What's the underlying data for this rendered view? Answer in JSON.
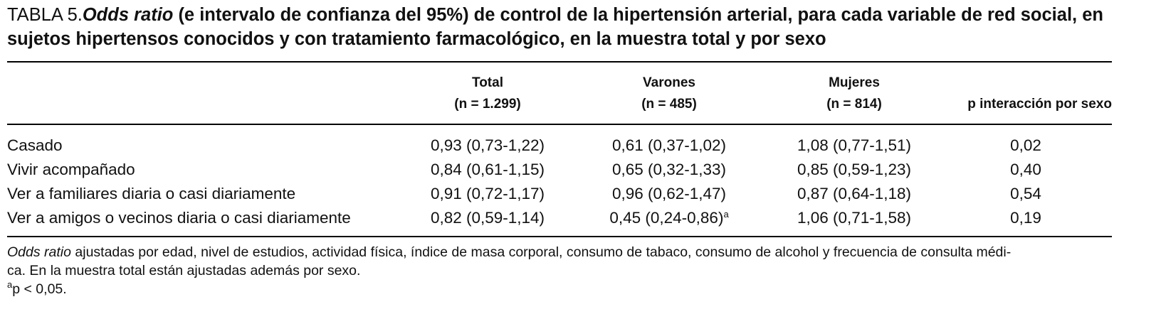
{
  "title": {
    "label": "TABLA 5.",
    "term": "Odds ratio",
    "rest": " (e intervalo de confianza del 95%) de control de la hipertensión arterial, para cada variable de red social, en sujetos hipertensos conocidos y con tratamiento farmacológico, en la muestra total y por sexo"
  },
  "table": {
    "columns": [
      {
        "name": "Total",
        "n": "(n = 1.299)"
      },
      {
        "name": "Varones",
        "n": "(n = 485)"
      },
      {
        "name": "Mujeres",
        "n": "(n = 814)"
      },
      {
        "name": "p interacción por sexo"
      }
    ],
    "rows": [
      {
        "label": "Casado",
        "cells": [
          "0,93 (0,73-1,22)",
          "0,61 (0,37-1,02)",
          "1,08 (0,77-1,51)",
          "0,02"
        ]
      },
      {
        "label": "Vivir acompañado",
        "cells": [
          "0,84 (0,61-1,15)",
          "0,65 (0,32-1,33)",
          "0,85 (0,59-1,23)",
          "0,40"
        ]
      },
      {
        "label": "Ver a familiares diaria o casi diariamente",
        "cells": [
          "0,91 (0,72-1,17)",
          "0,96 (0,62-1,47)",
          "0,87 (0,64-1,18)",
          "0,54"
        ]
      },
      {
        "label": "Ver a amigos o vecinos diaria o casi diariamente",
        "cells": [
          "0,82 (0,59-1,14)",
          {
            "text": "0,45 (0,24-0,86)",
            "sup": "a"
          },
          "1,06 (0,71-1,58)",
          "0,19"
        ]
      }
    ]
  },
  "footnotes": {
    "term": "Odds ratio",
    "line1": " ajustadas por edad, nivel de estudios, actividad física, índice de masa corporal, consumo de tabaco, consumo de alcohol y frecuencia de consulta médi-",
    "line2": "ca. En la muestra total están ajustadas además por sexo.",
    "sup": "a",
    "note": "p < 0,05."
  }
}
